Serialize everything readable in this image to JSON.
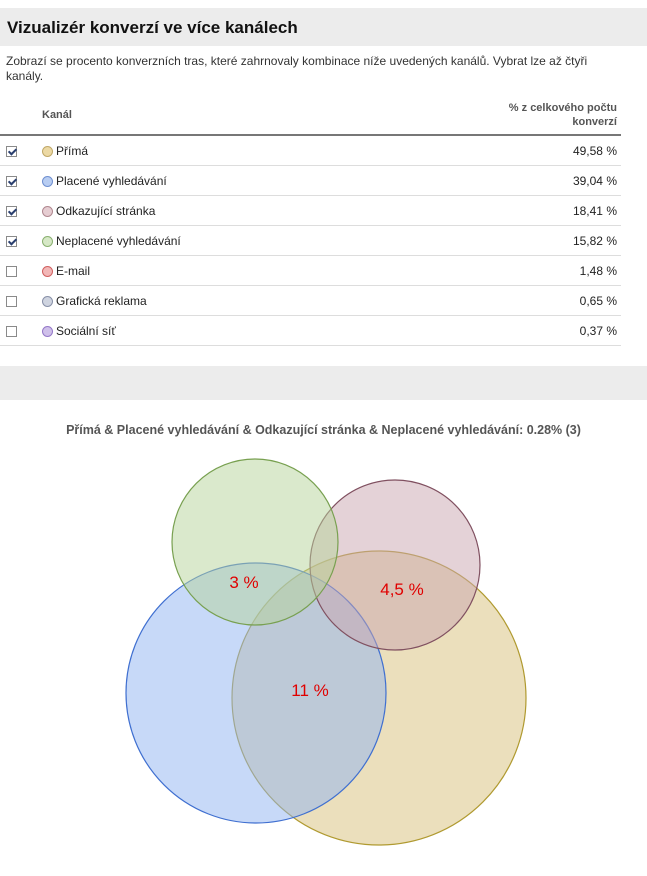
{
  "page_title": "Vizualizér konverzí ve více kanálech",
  "description": "Zobrazí se procento konverzních tras, které zahrnovaly kombinace níže uvedených kanálů. Vybrat lze až čtyři kanály.",
  "table": {
    "col_channel": "Kanál",
    "col_percent_line1": "% z celkového počtu",
    "col_percent_line2": "konverzí",
    "rows": [
      {
        "label": "Přímá",
        "percent": "49,58 %",
        "checked": true,
        "color": "#ecd9a4",
        "border": "#c0a868"
      },
      {
        "label": "Placené vyhledávání",
        "percent": "39,04 %",
        "checked": true,
        "color": "#b8cdf2",
        "border": "#6f8fd0"
      },
      {
        "label": "Odkazující stránka",
        "percent": "18,41 %",
        "checked": true,
        "color": "#e6cdd2",
        "border": "#b08890"
      },
      {
        "label": "Neplacené vyhledávání",
        "percent": "15,82 %",
        "checked": true,
        "color": "#d6e8c6",
        "border": "#8ab070"
      },
      {
        "label": "E-mail",
        "percent": "1,48 %",
        "checked": false,
        "color": "#f2b7b7",
        "border": "#d06060"
      },
      {
        "label": "Grafická reklama",
        "percent": "0,65 %",
        "checked": false,
        "color": "#cfd4e0",
        "border": "#8890a8"
      },
      {
        "label": "Sociální síť",
        "percent": "0,37 %",
        "checked": false,
        "color": "#cfc0ea",
        "border": "#9478c8"
      }
    ]
  },
  "venn": {
    "caption": "Přímá & Placené vyhledávání & Odkazující stránka & Neplacené vyhledávání: 0.28% (3)",
    "labels": [
      "3 %",
      "4,5 %",
      "11 %"
    ],
    "label_color": "#e00000",
    "circles": [
      {
        "channel": "Přímá",
        "fill": "#d8c07a",
        "stroke": "#b09a30"
      },
      {
        "channel": "Placené vyhledávání",
        "fill": "#8fb3f2",
        "stroke": "#3f6fd0"
      },
      {
        "channel": "Odkazující stránka",
        "fill": "#c9a5b0",
        "stroke": "#805060"
      },
      {
        "channel": "Neplacené vyhledávání",
        "fill": "#b6d39a",
        "stroke": "#78a050"
      }
    ]
  }
}
